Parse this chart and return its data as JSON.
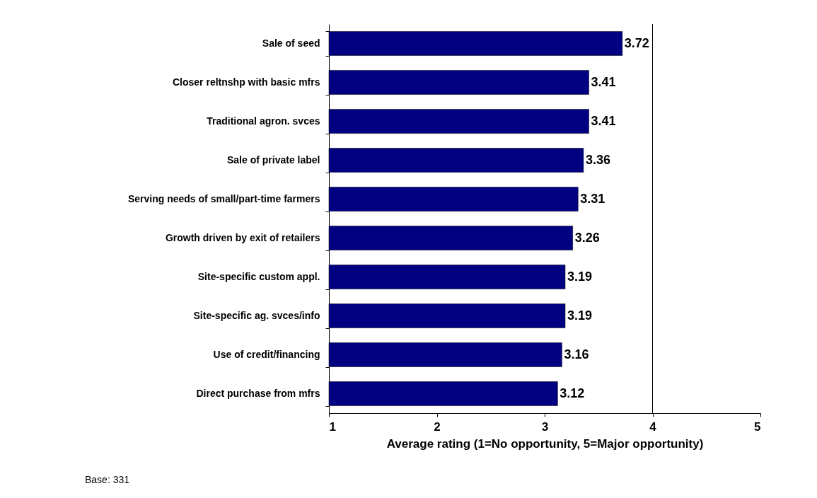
{
  "chart_data": {
    "type": "bar",
    "orientation": "horizontal",
    "categories": [
      "Sale of seed",
      "Closer reltnshp with basic mfrs",
      "Traditional agron. svces",
      "Sale of private label",
      "Serving needs of small/part-time farmers",
      "Growth driven by exit of retailers",
      "Site-specific custom appl.",
      "Site-specific ag. svces/info",
      "Use of credit/financing",
      "Direct purchase from mfrs"
    ],
    "values": [
      3.72,
      3.41,
      3.41,
      3.36,
      3.31,
      3.26,
      3.19,
      3.19,
      3.16,
      3.12
    ],
    "color": "#000080",
    "data_labels": true,
    "xlim": [
      1,
      5
    ],
    "xticks": [
      1,
      2,
      3,
      4,
      5
    ],
    "xlabel": "Average rating (1=No opportunity, 5=Major opportunity)",
    "ref_lines": [
      {
        "axis": "x",
        "value": 4,
        "label": null,
        "color": "#000000"
      }
    ],
    "annotations": [
      "Base: 331"
    ],
    "grid": false
  }
}
